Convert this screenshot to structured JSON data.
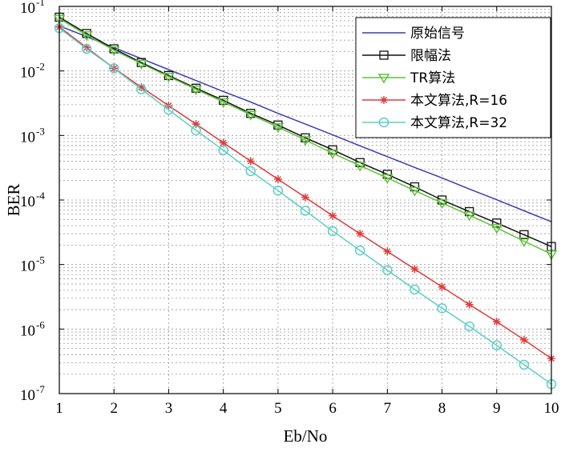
{
  "chart_data": {
    "type": "line",
    "title": "",
    "xlabel": "Eb/No",
    "ylabel": "BER",
    "xlim": [
      1,
      10
    ],
    "ylim": [
      1e-07,
      0.1
    ],
    "yscale": "log",
    "grid": true,
    "legend_position": "top-right",
    "x_ticks": [
      "1",
      "2",
      "3",
      "4",
      "5",
      "6",
      "7",
      "8",
      "9",
      "10"
    ],
    "y_ticks": [
      {
        "base": "10",
        "exp": "-7"
      },
      {
        "base": "10",
        "exp": "-6"
      },
      {
        "base": "10",
        "exp": "-5"
      },
      {
        "base": "10",
        "exp": "-4"
      },
      {
        "base": "10",
        "exp": "-3"
      },
      {
        "base": "10",
        "exp": "-2"
      },
      {
        "base": "10",
        "exp": "-1"
      }
    ],
    "x": [
      1,
      1.5,
      2,
      2.5,
      3,
      3.5,
      4,
      4.5,
      5,
      5.5,
      6,
      6.5,
      7,
      7.5,
      8,
      8.5,
      9,
      9.5,
      10
    ],
    "series": [
      {
        "name": "原始信号",
        "color": "#3c3cb4",
        "marker": "none",
        "values": [
          0.05,
          0.034,
          0.023,
          0.0155,
          0.0105,
          0.0071,
          0.0048,
          0.0033,
          0.0022,
          0.0015,
          0.00102,
          0.00069,
          0.00047,
          0.00032,
          0.00022,
          0.000148,
          0.000101,
          6.8e-05,
          4.6e-05
        ]
      },
      {
        "name": "限幅法",
        "color": "#111111",
        "marker": "square",
        "values": [
          0.068,
          0.038,
          0.022,
          0.0135,
          0.0085,
          0.0054,
          0.0035,
          0.0022,
          0.00145,
          0.00092,
          0.0006,
          0.00038,
          0.00025,
          0.00016,
          0.0001,
          6.6e-05,
          4.4e-05,
          2.9e-05,
          1.9e-05
        ]
      },
      {
        "name": "TR算法",
        "color": "#5fc23a",
        "marker": "triangle-down",
        "values": [
          0.065,
          0.036,
          0.021,
          0.013,
          0.0082,
          0.0052,
          0.0033,
          0.0021,
          0.00135,
          0.00085,
          0.00053,
          0.00034,
          0.00022,
          0.00014,
          9e-05,
          5.8e-05,
          3.7e-05,
          2.3e-05,
          1.45e-05
        ]
      },
      {
        "name": "本文算法,R=16",
        "color": "#e03a3a",
        "marker": "star",
        "values": [
          0.048,
          0.023,
          0.011,
          0.0056,
          0.0029,
          0.0015,
          0.00077,
          0.0004,
          0.00021,
          0.00011,
          5.7e-05,
          3e-05,
          1.6e-05,
          8.5e-06,
          4.5e-06,
          2.4e-06,
          1.3e-06,
          6.8e-07,
          3.5e-07
        ]
      },
      {
        "name": "本文算法,R=32",
        "color": "#5ccfc4",
        "marker": "circle",
        "values": [
          0.046,
          0.022,
          0.011,
          0.0052,
          0.0025,
          0.0012,
          0.00059,
          0.00028,
          0.00014,
          6.8e-05,
          3.3e-05,
          1.65e-05,
          8.2e-06,
          4.1e-06,
          2.1e-06,
          1.1e-06,
          5.6e-07,
          2.8e-07,
          1.4e-07
        ]
      }
    ]
  }
}
